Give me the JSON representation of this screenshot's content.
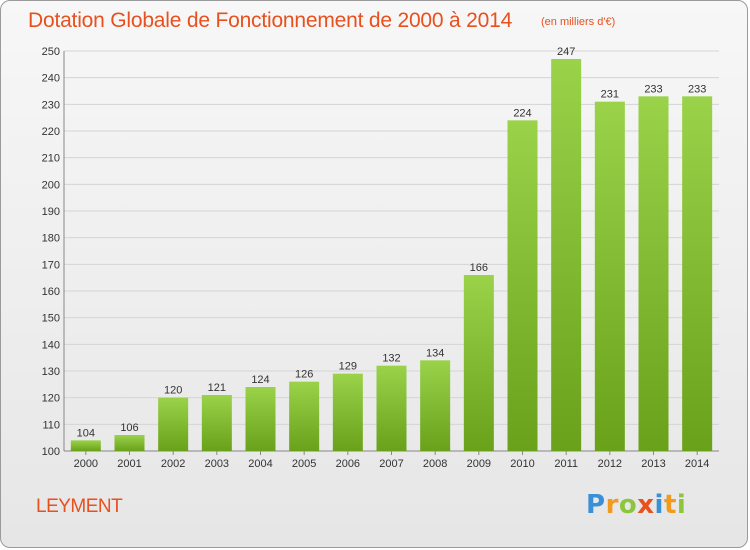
{
  "title": "Dotation Globale de Fonctionnement de 2000 à 2014",
  "unit_note": "(en milliers d'€)",
  "commune": "LEYMENT",
  "brand": {
    "letters": [
      "P",
      "r",
      "o",
      "x",
      "i",
      "t",
      "i"
    ],
    "colors": [
      "#3a8fd9",
      "#f29a1d",
      "#8cc63f",
      "#e8501e",
      "#3a8fd9",
      "#f29a1d",
      "#8cc63f"
    ]
  },
  "colors": {
    "bar_light": "#9ad24a",
    "bar_dark": "#6aa11a",
    "title": "#e8501e",
    "grid": "#d4d4d4"
  },
  "chart_data": {
    "type": "bar",
    "title": "Dotation Globale de Fonctionnement de 2000 à 2014",
    "subtitle": "(en milliers d'€)",
    "xlabel": "",
    "ylabel": "",
    "categories": [
      "2000",
      "2001",
      "2002",
      "2003",
      "2004",
      "2005",
      "2006",
      "2007",
      "2008",
      "2009",
      "2010",
      "2011",
      "2012",
      "2013",
      "2014"
    ],
    "values": [
      104,
      106,
      120,
      121,
      124,
      126,
      129,
      132,
      134,
      166,
      224,
      247,
      231,
      233,
      233
    ],
    "ylim": [
      100,
      250
    ],
    "yticks": [
      100,
      110,
      120,
      130,
      140,
      150,
      160,
      170,
      180,
      190,
      200,
      210,
      220,
      230,
      240,
      250
    ],
    "grid": true,
    "data_labels": true
  }
}
